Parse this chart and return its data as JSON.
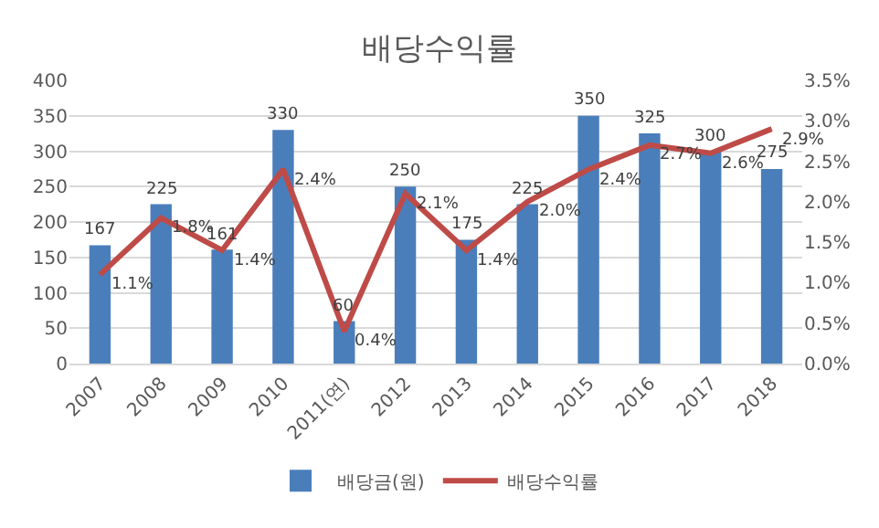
{
  "chart_data": {
    "type": "bar",
    "title": "배당수익률",
    "categories": [
      "2007",
      "2008",
      "2009",
      "2010",
      "2011(연)",
      "2012",
      "2013",
      "2014",
      "2015",
      "2016",
      "2017",
      "2018"
    ],
    "series": [
      {
        "name": "배당금(원)",
        "color": "#4a7ebb",
        "values": [
          167,
          225,
          161,
          330,
          60,
          250,
          175,
          225,
          350,
          325,
          300,
          275
        ],
        "value_labels": [
          "167",
          "225",
          "161",
          "330",
          "60",
          "250",
          "175",
          "225",
          "350",
          "325",
          "300",
          "275"
        ]
      },
      {
        "name": "배당수익률",
        "type": "line",
        "axis": "y2",
        "color": "#be4b48",
        "values": [
          1.1,
          1.8,
          1.4,
          2.4,
          0.4,
          2.1,
          1.4,
          2.0,
          2.4,
          2.7,
          2.6,
          2.9
        ],
        "value_labels": [
          "1.1%",
          "1.8%",
          "1.4%",
          "2.4%",
          "0.4%",
          "2.1%",
          "1.4%",
          "2.0%",
          "2.4%",
          "2.7%",
          "2.6%",
          "2.9%"
        ]
      }
    ],
    "ylim": [
      0,
      400
    ],
    "yticks": [
      0,
      50,
      100,
      150,
      200,
      250,
      300,
      350,
      400
    ],
    "y2lim": [
      0,
      3.5
    ],
    "y2ticks": [
      {
        "value": 0,
        "label": "0.0%"
      },
      {
        "value": 0.5,
        "label": "0.5%"
      },
      {
        "value": 1,
        "label": "1.0%"
      },
      {
        "value": 1.5,
        "label": "1.5%"
      },
      {
        "value": 2,
        "label": "2.0%"
      },
      {
        "value": 2.5,
        "label": "2.5%"
      },
      {
        "value": 3,
        "label": "3.0%"
      },
      {
        "value": 3.5,
        "label": "3.5%"
      }
    ],
    "grid": "y",
    "legend": "bottom",
    "marker": "none",
    "line_style": "solid"
  }
}
